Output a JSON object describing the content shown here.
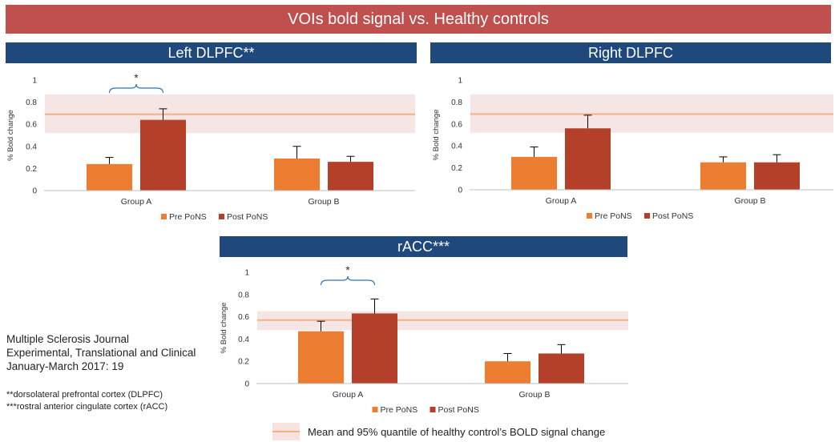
{
  "banner": "VOIs bold signal vs. Healthy controls",
  "colors": {
    "pre": "#ed7d31",
    "post": "#b5402a",
    "banner": "#c0504d",
    "panel_title": "#1f497d",
    "control_line": "#f4b183",
    "control_band": "#f2dcdb"
  },
  "chart_data": [
    {
      "type": "bar",
      "title": "Left DLPFC**",
      "ylabel": "% Bold change",
      "ylim": [
        0,
        1
      ],
      "yticks": [
        "0",
        "0.2",
        "0.4",
        "0.6",
        "0.8",
        "1"
      ],
      "categories": [
        "Group A",
        "Group B"
      ],
      "series": [
        {
          "name": "Pre PoNS",
          "values": [
            0.24,
            0.29
          ],
          "error": [
            0.06,
            0.11
          ]
        },
        {
          "name": "Post PoNS",
          "values": [
            0.64,
            0.26
          ],
          "error": [
            0.1,
            0.05
          ]
        }
      ],
      "control": {
        "mean": 0.69,
        "low": 0.52,
        "high": 0.87
      },
      "significance": {
        "category": "Group A",
        "label": "*"
      },
      "legend": "bottom"
    },
    {
      "type": "bar",
      "title": "Right DLPFC",
      "ylabel": "% Bold change",
      "ylim": [
        0,
        1
      ],
      "yticks": [
        "0",
        "0.2",
        "0.4",
        "0.6",
        "0.8",
        "1"
      ],
      "categories": [
        "Group A",
        "Group B"
      ],
      "series": [
        {
          "name": "Pre PoNS",
          "values": [
            0.3,
            0.25
          ],
          "error": [
            0.09,
            0.05
          ]
        },
        {
          "name": "Post PoNS",
          "values": [
            0.56,
            0.25
          ],
          "error": [
            0.12,
            0.07
          ]
        }
      ],
      "control": {
        "mean": 0.69,
        "low": 0.52,
        "high": 0.87
      },
      "legend": "bottom"
    },
    {
      "type": "bar",
      "title": "rACC***",
      "ylabel": "% Bold change",
      "ylim": [
        0,
        1
      ],
      "yticks": [
        "0",
        "0.2",
        "0.4",
        "0.6",
        "0.8",
        "1"
      ],
      "categories": [
        "Group A",
        "Group B"
      ],
      "series": [
        {
          "name": "Pre PoNS",
          "values": [
            0.47,
            0.2
          ],
          "error": [
            0.09,
            0.07
          ]
        },
        {
          "name": "Post PoNS",
          "values": [
            0.63,
            0.27
          ],
          "error": [
            0.13,
            0.08
          ]
        }
      ],
      "control": {
        "mean": 0.57,
        "low": 0.48,
        "high": 0.65
      },
      "significance": {
        "category": "Group A",
        "label": "*"
      },
      "legend": "bottom"
    }
  ],
  "journal": [
    "Multiple Sclerosis Journal",
    "Experimental, Translational and Clinical",
    "January-March 2017: 19"
  ],
  "footnotes": [
    "**dorsolateral prefrontal cortex (DLPFC)",
    "***rostral anterior cingulate cortex (rACC)"
  ],
  "band_legend": "Mean and 95% quantile of healthy control’s BOLD signal change"
}
